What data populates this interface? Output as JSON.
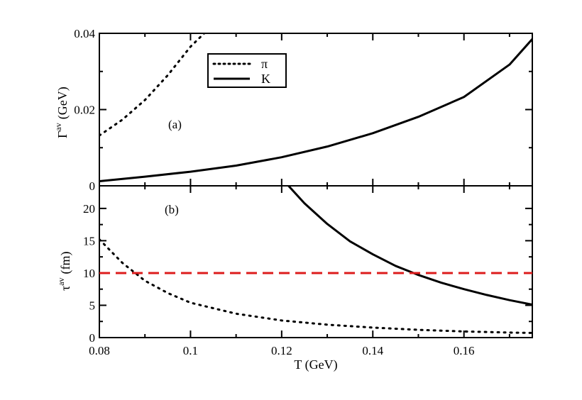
{
  "colors": {
    "axes": "#000000",
    "curves": "#000000",
    "reference_line": "#dd1c1c"
  },
  "chart_data": [
    {
      "type": "line",
      "panel_tag": "(a)",
      "xlabel": "T (GeV)",
      "ylabel": {
        "symbol": "Γ",
        "superscript": "av",
        "unit": "(GeV)"
      },
      "xlim": [
        0.08,
        0.175
      ],
      "ylim": [
        0,
        0.04
      ],
      "yticks": [
        0,
        0.02,
        0.04
      ],
      "ytick_labels": [
        "0",
        "0.02",
        "0.04"
      ],
      "grid": false,
      "legend_position": "top-center",
      "legend": [
        {
          "name": "π",
          "style": "dotted"
        },
        {
          "name": "K",
          "style": "solid"
        }
      ],
      "series": [
        {
          "name": "π",
          "style": "dotted",
          "x": [
            0.08,
            0.085,
            0.09,
            0.095,
            0.1,
            0.103
          ],
          "y": [
            0.0132,
            0.0173,
            0.0225,
            0.029,
            0.0365,
            0.04
          ]
        },
        {
          "name": "K",
          "style": "solid",
          "x": [
            0.08,
            0.09,
            0.1,
            0.11,
            0.12,
            0.13,
            0.14,
            0.15,
            0.16,
            0.17,
            0.175
          ],
          "y": [
            0.0012,
            0.0024,
            0.0037,
            0.0053,
            0.0075,
            0.0103,
            0.0138,
            0.0181,
            0.0233,
            0.0318,
            0.0385
          ]
        }
      ]
    },
    {
      "type": "line",
      "panel_tag": "(b)",
      "xlabel": "T (GeV)",
      "ylabel": {
        "symbol": "τ",
        "superscript": "av",
        "unit": "(fm)"
      },
      "xlim": [
        0.08,
        0.175
      ],
      "ylim": [
        0,
        23.5
      ],
      "xticks": [
        0.08,
        0.1,
        0.12,
        0.14,
        0.16
      ],
      "xtick_labels": [
        "0.08",
        "0.1",
        "0.12",
        "0.14",
        "0.16"
      ],
      "yticks": [
        0,
        5,
        10,
        15,
        20
      ],
      "ytick_labels": [
        "0",
        "5",
        "10",
        "15",
        "20"
      ],
      "grid": false,
      "series": [
        {
          "name": "π",
          "style": "dotted",
          "x": [
            0.08,
            0.085,
            0.09,
            0.095,
            0.1,
            0.11,
            0.12,
            0.13,
            0.14,
            0.15,
            0.16,
            0.17,
            0.175
          ],
          "y": [
            15.2,
            11.6,
            8.8,
            6.9,
            5.4,
            3.7,
            2.65,
            2.0,
            1.55,
            1.2,
            0.95,
            0.78,
            0.72
          ]
        },
        {
          "name": "K",
          "style": "solid",
          "x": [
            0.1215,
            0.125,
            0.13,
            0.135,
            0.14,
            0.145,
            0.15,
            0.155,
            0.16,
            0.165,
            0.17,
            0.175
          ],
          "y": [
            23.5,
            20.8,
            17.6,
            14.9,
            12.9,
            11.1,
            9.7,
            8.5,
            7.5,
            6.6,
            5.8,
            5.1
          ]
        },
        {
          "name": "",
          "style": "dashed-red",
          "x": [
            0.08,
            0.175
          ],
          "y": [
            10,
            10
          ]
        }
      ]
    }
  ]
}
